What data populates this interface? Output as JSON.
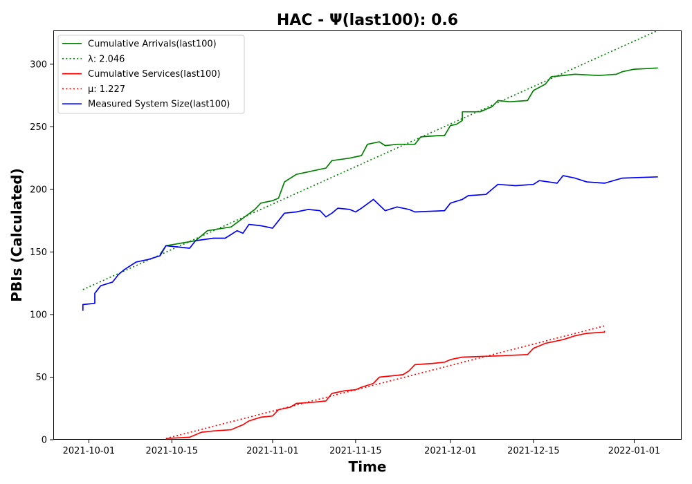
{
  "chart_data": {
    "type": "line",
    "title": "HAC -  Ψ(last100): 0.6",
    "xlabel": "Time",
    "ylabel": "PBIs (Calculated)",
    "xlim": [
      "2021-09-25",
      "2022-01-09"
    ],
    "ylim": [
      0,
      327
    ],
    "x_ticks": [
      "2021-10-01",
      "2021-10-15",
      "2021-11-01",
      "2021-11-15",
      "2021-12-01",
      "2021-12-15",
      "2022-01-01"
    ],
    "y_ticks": [
      0,
      50,
      100,
      150,
      200,
      250,
      300
    ],
    "grid": false,
    "legend_position": "top-left",
    "series": [
      {
        "name": "Cumulative Arrivals(last100)",
        "style": "solid",
        "color": "#008000",
        "points": [
          [
            "2021-10-13",
            148
          ],
          [
            "2021-10-14",
            155
          ],
          [
            "2021-10-19",
            159
          ],
          [
            "2021-10-20",
            163
          ],
          [
            "2021-10-21",
            167
          ],
          [
            "2021-10-25",
            170
          ],
          [
            "2021-10-27",
            177
          ],
          [
            "2021-10-29",
            184
          ],
          [
            "2021-10-30",
            189
          ],
          [
            "2021-11-01",
            191
          ],
          [
            "2021-11-02",
            193
          ],
          [
            "2021-11-03",
            206
          ],
          [
            "2021-11-05",
            212
          ],
          [
            "2021-11-07",
            214
          ],
          [
            "2021-11-10",
            217
          ],
          [
            "2021-11-11",
            223
          ],
          [
            "2021-11-14",
            225
          ],
          [
            "2021-11-16",
            227
          ],
          [
            "2021-11-17",
            236
          ],
          [
            "2021-11-19",
            238
          ],
          [
            "2021-11-20",
            235
          ],
          [
            "2021-11-22",
            236
          ],
          [
            "2021-11-25",
            236
          ],
          [
            "2021-11-26",
            242
          ],
          [
            "2021-11-29",
            243
          ],
          [
            "2021-11-30",
            243
          ],
          [
            "2021-12-01",
            251
          ],
          [
            "2021-12-02",
            252
          ],
          [
            "2021-12-03",
            255
          ],
          [
            "2021-12-03",
            262
          ],
          [
            "2021-12-06",
            262
          ],
          [
            "2021-12-08",
            266
          ],
          [
            "2021-12-09",
            271
          ],
          [
            "2021-12-11",
            270
          ],
          [
            "2021-12-14",
            271
          ],
          [
            "2021-12-15",
            279
          ],
          [
            "2021-12-17",
            284
          ],
          [
            "2021-12-18",
            290
          ],
          [
            "2021-12-22",
            292
          ],
          [
            "2021-12-26",
            291
          ],
          [
            "2021-12-29",
            292
          ],
          [
            "2021-12-30",
            294
          ],
          [
            "2022-01-01",
            296
          ],
          [
            "2022-01-05",
            297
          ]
        ]
      },
      {
        "name": "λ: 2.046",
        "style": "dotted",
        "color": "#008000",
        "points": [
          [
            "2021-09-30",
            120
          ],
          [
            "2022-01-05",
            327
          ]
        ]
      },
      {
        "name": "Cumulative Services(last100)",
        "style": "solid",
        "color": "#ff0000",
        "points": [
          [
            "2021-10-14",
            1
          ],
          [
            "2021-10-18",
            2
          ],
          [
            "2021-10-20",
            6
          ],
          [
            "2021-10-22",
            7
          ],
          [
            "2021-10-25",
            8
          ],
          [
            "2021-10-26",
            10
          ],
          [
            "2021-10-27",
            12
          ],
          [
            "2021-10-28",
            15
          ],
          [
            "2021-10-30",
            18
          ],
          [
            "2021-11-01",
            19
          ],
          [
            "2021-11-02",
            24
          ],
          [
            "2021-11-03",
            25
          ],
          [
            "2021-11-04",
            26
          ],
          [
            "2021-11-05",
            29
          ],
          [
            "2021-11-08",
            30
          ],
          [
            "2021-11-10",
            31
          ],
          [
            "2021-11-11",
            37
          ],
          [
            "2021-11-13",
            39
          ],
          [
            "2021-11-15",
            40
          ],
          [
            "2021-11-16",
            42
          ],
          [
            "2021-11-18",
            45
          ],
          [
            "2021-11-19",
            50
          ],
          [
            "2021-11-23",
            52
          ],
          [
            "2021-11-24",
            55
          ],
          [
            "2021-11-25",
            60
          ],
          [
            "2021-11-28",
            61
          ],
          [
            "2021-11-30",
            62
          ],
          [
            "2021-12-01",
            64
          ],
          [
            "2021-12-03",
            66
          ],
          [
            "2021-12-09",
            67
          ],
          [
            "2021-12-14",
            68
          ],
          [
            "2021-12-15",
            73
          ],
          [
            "2021-12-17",
            77
          ],
          [
            "2021-12-20",
            80
          ],
          [
            "2021-12-22",
            83
          ],
          [
            "2021-12-24",
            85
          ],
          [
            "2021-12-27",
            86
          ],
          [
            "2021-12-27",
            87
          ]
        ]
      },
      {
        "name": "μ: 1.227",
        "style": "dotted",
        "color": "#ff0000",
        "points": [
          [
            "2021-10-14",
            1
          ],
          [
            "2021-12-27",
            91
          ]
        ]
      },
      {
        "name": "Measured System Size(last100)",
        "style": "solid",
        "color": "#0000ff",
        "points": [
          [
            "2021-09-30",
            103
          ],
          [
            "2021-09-30",
            108
          ],
          [
            "2021-10-02",
            109
          ],
          [
            "2021-10-02",
            117
          ],
          [
            "2021-10-03",
            123
          ],
          [
            "2021-10-05",
            126
          ],
          [
            "2021-10-06",
            132
          ],
          [
            "2021-10-07",
            136
          ],
          [
            "2021-10-09",
            142
          ],
          [
            "2021-10-11",
            144
          ],
          [
            "2021-10-13",
            147
          ],
          [
            "2021-10-14",
            155
          ],
          [
            "2021-10-18",
            153
          ],
          [
            "2021-10-19",
            159
          ],
          [
            "2021-10-22",
            161
          ],
          [
            "2021-10-24",
            161
          ],
          [
            "2021-10-25",
            164
          ],
          [
            "2021-10-26",
            167
          ],
          [
            "2021-10-27",
            165
          ],
          [
            "2021-10-28",
            172
          ],
          [
            "2021-10-30",
            171
          ],
          [
            "2021-11-01",
            169
          ],
          [
            "2021-11-02",
            175
          ],
          [
            "2021-11-03",
            181
          ],
          [
            "2021-11-05",
            182
          ],
          [
            "2021-11-07",
            184
          ],
          [
            "2021-11-09",
            183
          ],
          [
            "2021-11-10",
            178
          ],
          [
            "2021-11-11",
            181
          ],
          [
            "2021-11-12",
            185
          ],
          [
            "2021-11-14",
            184
          ],
          [
            "2021-11-15",
            182
          ],
          [
            "2021-11-16",
            185
          ],
          [
            "2021-11-18",
            192
          ],
          [
            "2021-11-20",
            183
          ],
          [
            "2021-11-22",
            186
          ],
          [
            "2021-11-24",
            184
          ],
          [
            "2021-11-25",
            182
          ],
          [
            "2021-11-30",
            183
          ],
          [
            "2021-12-01",
            189
          ],
          [
            "2021-12-03",
            192
          ],
          [
            "2021-12-04",
            195
          ],
          [
            "2021-12-07",
            196
          ],
          [
            "2021-12-08",
            200
          ],
          [
            "2021-12-09",
            204
          ],
          [
            "2021-12-12",
            203
          ],
          [
            "2021-12-15",
            204
          ],
          [
            "2021-12-16",
            207
          ],
          [
            "2021-12-19",
            205
          ],
          [
            "2021-12-20",
            211
          ],
          [
            "2021-12-22",
            209
          ],
          [
            "2021-12-24",
            206
          ],
          [
            "2021-12-27",
            205
          ],
          [
            "2021-12-30",
            209
          ],
          [
            "2022-01-05",
            210
          ]
        ]
      }
    ]
  }
}
